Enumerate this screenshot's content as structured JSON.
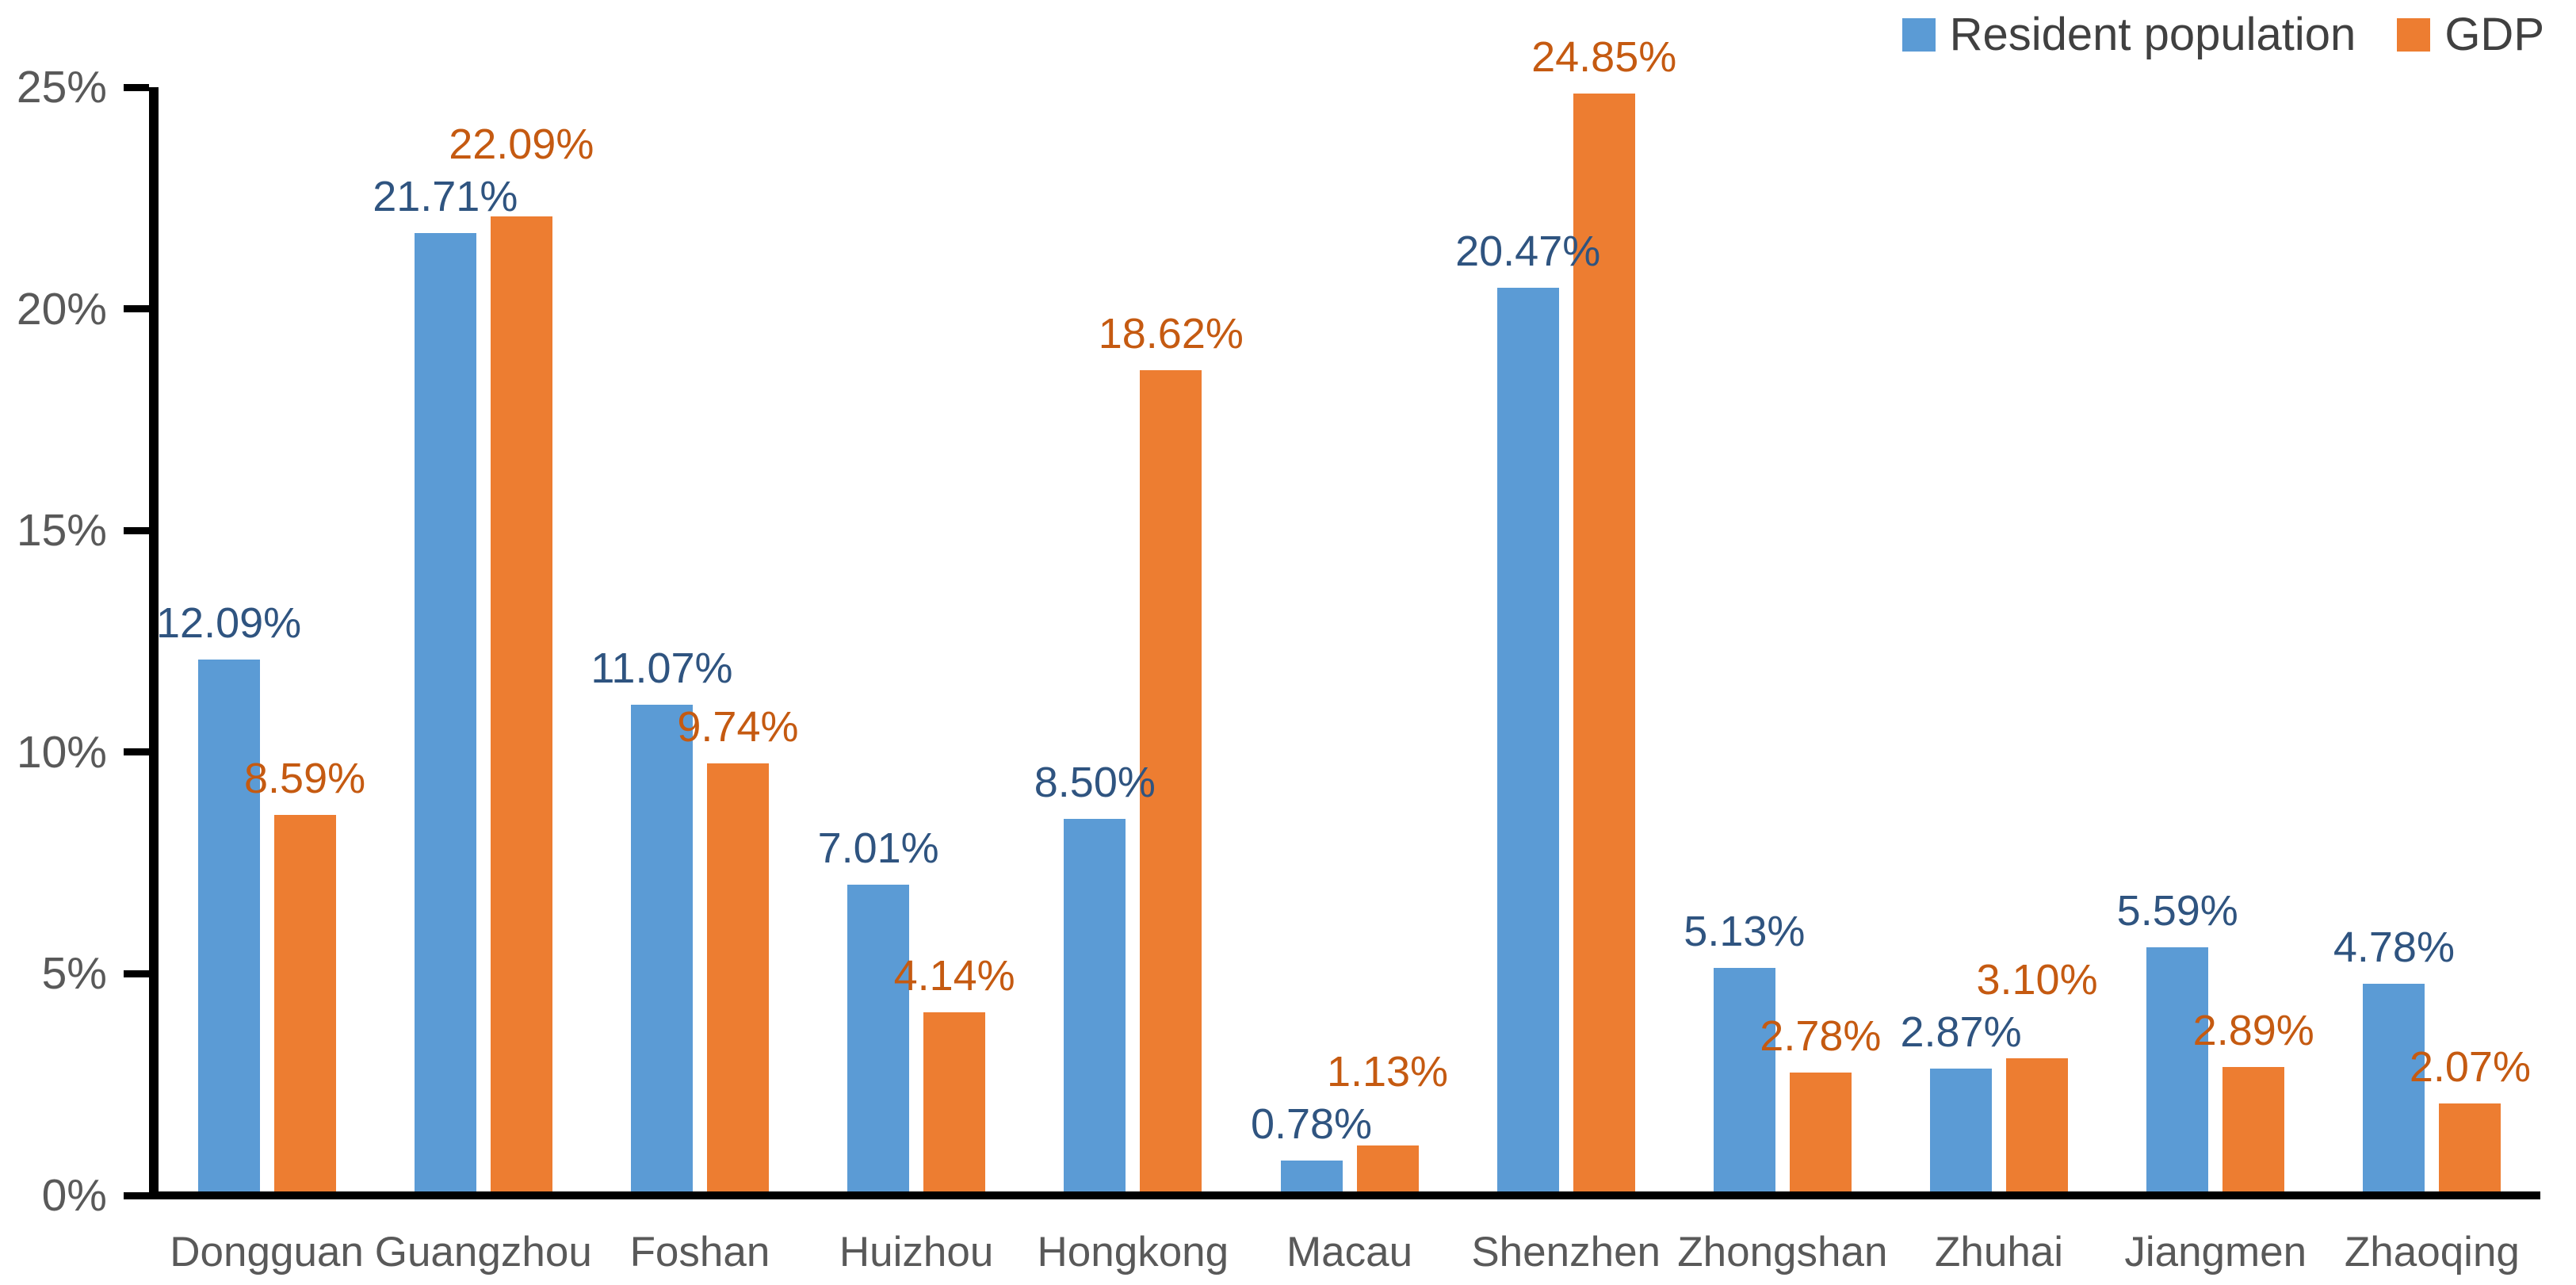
{
  "chart_data": {
    "type": "bar",
    "title": "",
    "xlabel": "",
    "ylabel": "",
    "categories": [
      "Dongguan",
      "Guangzhou",
      "Foshan",
      "Huizhou",
      "Hongkong",
      "Macau",
      "Shenzhen",
      "Zhongshan",
      "Zhuhai",
      "Jiangmen",
      "Zhaoqing"
    ],
    "series": [
      {
        "name": "Resident population",
        "color": "#5B9BD5",
        "label_color": "#2F5480",
        "values": [
          12.09,
          21.71,
          11.07,
          7.01,
          8.5,
          0.78,
          20.47,
          5.13,
          2.87,
          5.59,
          4.78
        ]
      },
      {
        "name": "GDP",
        "color": "#ED7D31",
        "label_color": "#C55A11",
        "values": [
          8.59,
          22.09,
          9.74,
          4.14,
          18.62,
          1.13,
          24.85,
          2.78,
          3.1,
          2.89,
          2.07
        ]
      }
    ],
    "ylim": [
      0,
      25
    ],
    "yticks": [
      {
        "value": 0,
        "label": "0%"
      },
      {
        "value": 5,
        "label": "5%"
      },
      {
        "value": 10,
        "label": "10%"
      },
      {
        "value": 15,
        "label": "15%"
      },
      {
        "value": 20,
        "label": "20%"
      },
      {
        "value": 25,
        "label": "25%"
      }
    ],
    "grid": false,
    "legend_position": "top-right",
    "value_label_decimals": 2,
    "value_label_suffix": "%"
  },
  "colors": {
    "background": "#FFFFFF",
    "axis_line": "#000000",
    "tick_label": "#595959",
    "category_label": "#595959",
    "legend_text": "#404040"
  }
}
